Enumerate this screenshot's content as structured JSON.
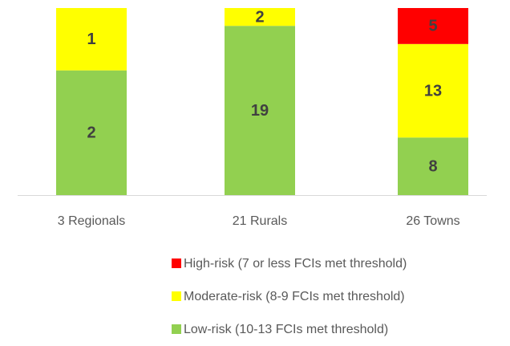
{
  "chart_data": {
    "type": "stacked_bar_100",
    "categories": [
      "3 Regionals",
      "21 Rurals",
      "26 Towns"
    ],
    "series": [
      {
        "name": "Low-risk (10-13 FCIs met threshold)",
        "color": "#92d050",
        "values": [
          2,
          19,
          8
        ]
      },
      {
        "name": "Moderate-risk (8-9 FCIs met threshold)",
        "color": "#ffff00",
        "values": [
          1,
          2,
          13
        ]
      },
      {
        "name": "High-risk (7 or less FCIs met threshold)",
        "color": "#ff0000",
        "values": [
          null,
          null,
          5
        ]
      }
    ]
  }
}
